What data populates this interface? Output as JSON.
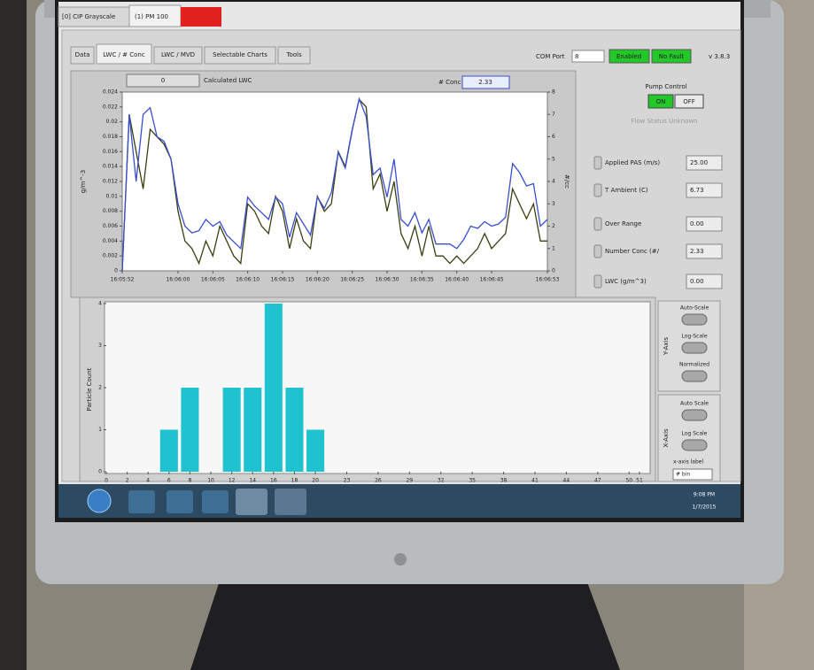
{
  "tabs": {
    "top": [
      "[0] CIP Grayscale",
      "(1) PM 100"
    ],
    "sub": [
      "Data",
      "LWC / # Conc",
      "LWC / MVD",
      "Selectable Charts",
      "Tools"
    ]
  },
  "status": {
    "com_port_label": "COM Port",
    "com_port": "8",
    "enabled": "Enabled",
    "fault": "No Fault",
    "version": "v 3.8.3"
  },
  "calc_lwc": {
    "value": "0",
    "label": "Calculated LWC"
  },
  "conc": {
    "label": "# Conc",
    "value": "2.33"
  },
  "pump": {
    "title": "Pump Control",
    "on": "ON",
    "off": "OFF",
    "status": "Flow Status Unknown"
  },
  "readouts": [
    {
      "label": "Applied PAS (m/s)",
      "value": "25.00"
    },
    {
      "label": "T Ambient (C)",
      "value": "6.73"
    },
    {
      "label": "Over Range",
      "value": "0.00"
    },
    {
      "label": "Number Conc (#/",
      "value": "2.33"
    },
    {
      "label": "LWC (g/m^3)",
      "value": "0.00"
    }
  ],
  "line_chart": {
    "type": "line",
    "y_label": "g/m^-3",
    "y2_label": "#/cc",
    "x": [
      "16:05:52",
      "16:05:53",
      "16:05:54",
      "16:05:55",
      "16:05:56",
      "16:05:57",
      "16:05:58",
      "16:05:59",
      "16:06:00",
      "16:06:01",
      "16:06:02",
      "16:06:03",
      "16:06:04",
      "16:06:05",
      "16:06:06",
      "16:06:07",
      "16:06:08",
      "16:06:09",
      "16:06:10",
      "16:06:11",
      "16:06:12",
      "16:06:13",
      "16:06:14",
      "16:06:15",
      "16:06:16",
      "16:06:17",
      "16:06:18",
      "16:06:19",
      "16:06:20",
      "16:06:21",
      "16:06:22",
      "16:06:23",
      "16:06:24",
      "16:06:25",
      "16:06:26",
      "16:06:27",
      "16:06:28",
      "16:06:29",
      "16:06:30",
      "16:06:31",
      "16:06:32",
      "16:06:33",
      "16:06:34",
      "16:06:35",
      "16:06:36",
      "16:06:37",
      "16:06:38",
      "16:06:39",
      "16:06:40",
      "16:06:41",
      "16:06:42",
      "16:06:43",
      "16:06:44",
      "16:06:45",
      "16:06:46",
      "16:06:47",
      "16:06:48",
      "16:06:49",
      "16:06:50",
      "16:06:51",
      "16:06:52",
      "16:06:53"
    ],
    "xticks": [
      "16:05:52",
      "16:06:00",
      "16:06:05",
      "16:06:10",
      "16:06:15",
      "16:06:20",
      "16:06:25",
      "16:06:30",
      "16:06:35",
      "16:06:40",
      "16:06:45",
      "16:06:53"
    ],
    "ylim": [
      0,
      0.024
    ],
    "yticks": [
      0,
      0.002,
      0.004,
      0.006,
      0.008,
      0.01,
      0.012,
      0.014,
      0.016,
      0.018,
      0.02,
      0.022,
      0.024
    ],
    "y2lim": [
      0,
      8
    ],
    "y2ticks": [
      0,
      1,
      2,
      3,
      4,
      5,
      6,
      7,
      8
    ],
    "series": [
      {
        "color": "#3b3f12",
        "values": [
          0,
          0.021,
          0.016,
          0.011,
          0.019,
          0.018,
          0.017,
          0.015,
          0.008,
          0.004,
          0.003,
          0.001,
          0.004,
          0.002,
          0.006,
          0.004,
          0.002,
          0.001,
          0.009,
          0.008,
          0.006,
          0.005,
          0.01,
          0.008,
          0.003,
          0.007,
          0.004,
          0.003,
          0.01,
          0.008,
          0.009,
          0.016,
          0.014,
          0.019,
          0.023,
          0.022,
          0.011,
          0.013,
          0.008,
          0.012,
          0.005,
          0.003,
          0.006,
          0.002,
          0.006,
          0.002,
          0.002,
          0.001,
          0.002,
          0.001,
          0.002,
          0.003,
          0.005,
          0.003,
          0.004,
          0.005,
          0.011,
          0.009,
          0.007,
          0.009,
          0.004,
          0.004
        ]
      },
      {
        "color": "#3a4fd0",
        "axis": "y2",
        "values": [
          0,
          7.0,
          4.0,
          7.0,
          7.3,
          6.0,
          5.8,
          5.0,
          3.0,
          2.0,
          1.7,
          1.8,
          2.3,
          2.0,
          2.2,
          1.6,
          1.3,
          1.0,
          3.3,
          2.9,
          2.6,
          2.3,
          3.3,
          3.0,
          1.5,
          2.6,
          2.1,
          1.6,
          3.3,
          2.8,
          3.5,
          5.3,
          4.6,
          6.3,
          7.7,
          6.9,
          4.3,
          4.6,
          3.3,
          5.0,
          2.3,
          2.0,
          2.6,
          1.7,
          2.3,
          1.2,
          1.2,
          1.2,
          1.0,
          1.4,
          2.0,
          1.9,
          2.2,
          2.0,
          2.1,
          2.4,
          4.8,
          4.4,
          3.8,
          3.9,
          2.0,
          2.3
        ]
      }
    ]
  },
  "histogram": {
    "type": "bar",
    "y_label": "Particle Count",
    "color": "#1fc3cf",
    "x": [
      6,
      8,
      12,
      14,
      16,
      18,
      20
    ],
    "values": [
      1,
      2,
      2,
      2,
      4,
      2,
      1
    ],
    "xlim": [
      0,
      51
    ],
    "xticks": [
      0,
      2,
      4,
      6,
      8,
      10,
      12,
      14,
      16,
      18,
      20,
      23,
      26,
      29,
      32,
      35,
      38,
      41,
      44,
      47,
      50,
      51
    ],
    "ylim": [
      0,
      4
    ],
    "yticks": [
      0,
      1,
      2,
      3,
      4
    ]
  },
  "y_axis_controls": {
    "title": "Y-Axis",
    "items": [
      "Auto-Scale",
      "Log-Scale",
      "Normalized"
    ]
  },
  "x_axis_controls": {
    "title": "X-Axis",
    "items": [
      "Auto Scale",
      "Log Scale"
    ],
    "field_label": "x-axis label",
    "field_value": "# bin"
  },
  "taskbar": {
    "time": "9:08 PM",
    "date": "1/7/2015"
  }
}
